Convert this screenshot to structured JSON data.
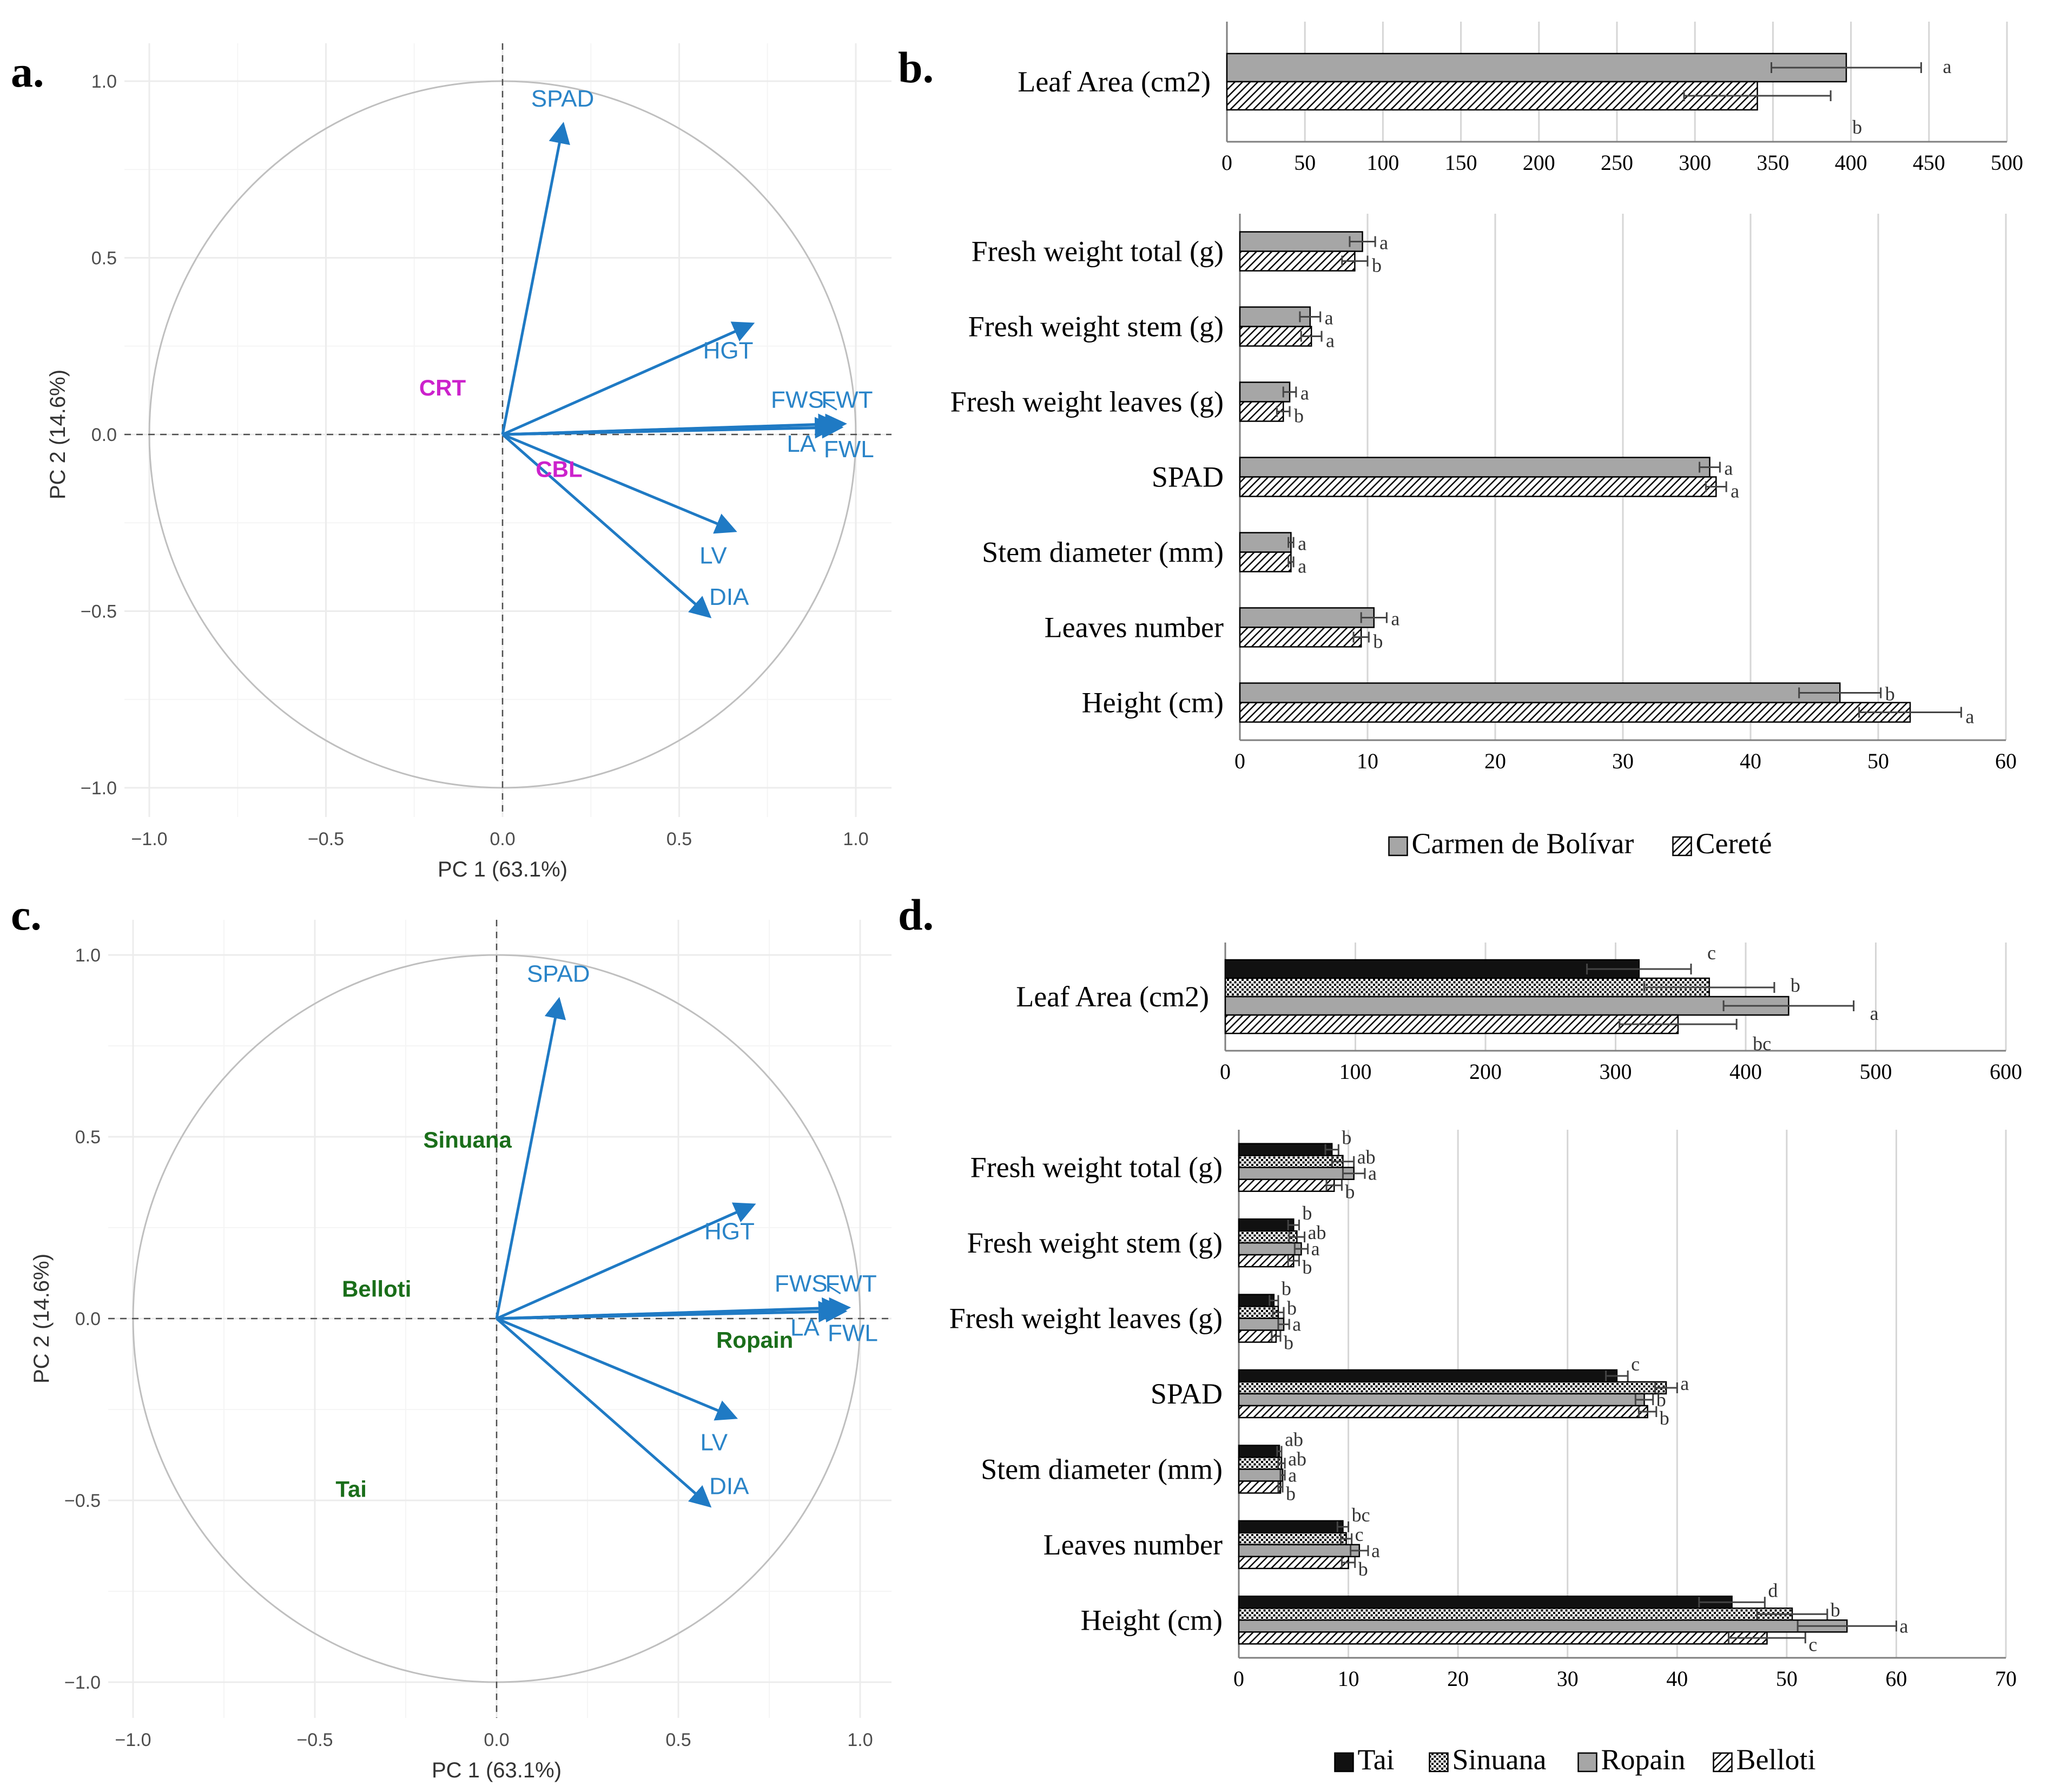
{
  "panel_labels": {
    "a": "a.",
    "b": "b.",
    "c": "c.",
    "d": "d."
  },
  "colors": {
    "arrow": "#1f7ac4",
    "var_label": "#2a84c8",
    "location_label": "#cc22cc",
    "variety_label": "#1a6e1a"
  },
  "chart_data": [
    {
      "id": "a",
      "type": "scatter",
      "subtype": "pca-biplot",
      "xlabel": "PC 1 (63.1%)",
      "ylabel": "PC 2 (14.6%)",
      "xlim": [
        -1.0,
        1.0
      ],
      "ylim": [
        -1.0,
        1.0
      ],
      "x_ticks": [
        "−1.0",
        "−0.5",
        "0.0",
        "0.5",
        "1.0"
      ],
      "y_ticks": [
        "1.0",
        "0.5",
        "0.0",
        "−0.5",
        "−1.0"
      ],
      "variables": [
        {
          "name": "SPAD",
          "x": 0.17,
          "y": 0.87
        },
        {
          "name": "HGT",
          "x": 0.7,
          "y": 0.31
        },
        {
          "name": "FWS",
          "x": 0.94,
          "y": 0.03
        },
        {
          "name": "FWT",
          "x": 0.96,
          "y": 0.03
        },
        {
          "name": "LA",
          "x": 0.93,
          "y": 0.02
        },
        {
          "name": "FWL",
          "x": 0.95,
          "y": 0.02
        },
        {
          "name": "LV",
          "x": 0.65,
          "y": -0.27
        },
        {
          "name": "DIA",
          "x": 0.58,
          "y": -0.51
        }
      ],
      "groups": [
        {
          "name": "CRT",
          "x": -0.17,
          "y": 0.11
        },
        {
          "name": "CBL",
          "x": 0.16,
          "y": -0.12
        }
      ]
    },
    {
      "id": "b-top",
      "type": "bar",
      "orientation": "horizontal",
      "categories": [
        "Leaf Area (cm2)"
      ],
      "series": [
        {
          "name": "Carmen de Bolívar",
          "values": [
            397
          ],
          "errors": [
            48
          ],
          "letters": [
            "a"
          ]
        },
        {
          "name": "Cereté",
          "values": [
            340
          ],
          "errors": [
            47
          ],
          "letters": [
            "b"
          ]
        }
      ],
      "xlim": [
        0,
        500
      ],
      "x_ticks": [
        "0",
        "50",
        "100",
        "150",
        "200",
        "250",
        "300",
        "350",
        "400",
        "450",
        "500"
      ]
    },
    {
      "id": "b-bottom",
      "type": "bar",
      "orientation": "horizontal",
      "categories": [
        "Fresh weight total (g)",
        "Fresh weight stem (g)",
        "Fresh weight leaves (g)",
        "SPAD",
        "Stem diameter (mm)",
        "Leaves number",
        "Height (cm)"
      ],
      "series": [
        {
          "name": "Carmen de Bolívar",
          "values": [
            9.6,
            5.5,
            3.9,
            36.8,
            4.0,
            10.5,
            47.0
          ],
          "errors": [
            1.0,
            0.8,
            0.5,
            0.8,
            0.2,
            1.0,
            3.2
          ],
          "letters": [
            "a",
            "a",
            "a",
            "a",
            "a",
            "a",
            "b"
          ]
        },
        {
          "name": "Cereté",
          "values": [
            9.0,
            5.6,
            3.4,
            37.3,
            4.0,
            9.5,
            52.5
          ],
          "errors": [
            1.0,
            0.8,
            0.5,
            0.8,
            0.2,
            0.6,
            4.0
          ],
          "letters": [
            "b",
            "a",
            "b",
            "a",
            "a",
            "b",
            "a"
          ]
        }
      ],
      "xlim": [
        0,
        60
      ],
      "x_ticks": [
        "0",
        "10",
        "20",
        "30",
        "40",
        "50",
        "60"
      ],
      "legend": [
        "Carmen de Bolívar",
        "Cereté"
      ]
    },
    {
      "id": "c",
      "type": "scatter",
      "subtype": "pca-biplot",
      "xlabel": "PC 1 (63.1%)",
      "ylabel": "PC 2 (14.6%)",
      "xlim": [
        -1.0,
        1.0
      ],
      "ylim": [
        -1.0,
        1.0
      ],
      "x_ticks": [
        "−1.0",
        "−0.5",
        "0.0",
        "0.5",
        "1.0"
      ],
      "y_ticks": [
        "1.0",
        "0.5",
        "0.0",
        "−0.5",
        "−1.0"
      ],
      "variables": [
        {
          "name": "SPAD",
          "x": 0.17,
          "y": 0.87
        },
        {
          "name": "HGT",
          "x": 0.7,
          "y": 0.31
        },
        {
          "name": "FWS",
          "x": 0.94,
          "y": 0.03
        },
        {
          "name": "FWT",
          "x": 0.96,
          "y": 0.03
        },
        {
          "name": "LA",
          "x": 0.93,
          "y": 0.02
        },
        {
          "name": "FWL",
          "x": 0.95,
          "y": 0.02
        },
        {
          "name": "LV",
          "x": 0.65,
          "y": -0.27
        },
        {
          "name": "DIA",
          "x": 0.58,
          "y": -0.51
        }
      ],
      "groups": [
        {
          "name": "Sinuana",
          "x": -0.08,
          "y": 0.47
        },
        {
          "name": "Belloti",
          "x": -0.33,
          "y": 0.06
        },
        {
          "name": "Ropain",
          "x": 0.71,
          "y": -0.08
        },
        {
          "name": "Tai",
          "x": -0.4,
          "y": -0.49
        }
      ]
    },
    {
      "id": "d-top",
      "type": "bar",
      "orientation": "horizontal",
      "categories": [
        "Leaf Area (cm2)"
      ],
      "series": [
        {
          "name": "Tai",
          "values": [
            318
          ],
          "errors": [
            40
          ],
          "letters": [
            "c"
          ]
        },
        {
          "name": "Sinuana",
          "values": [
            372
          ],
          "errors": [
            50
          ],
          "letters": [
            "b"
          ]
        },
        {
          "name": "Ropain",
          "values": [
            433
          ],
          "errors": [
            50
          ],
          "letters": [
            "a"
          ]
        },
        {
          "name": "Belloti",
          "values": [
            348
          ],
          "errors": [
            45
          ],
          "letters": [
            "bc"
          ]
        }
      ],
      "xlim": [
        0,
        600
      ],
      "x_ticks": [
        "0",
        "100",
        "200",
        "300",
        "400",
        "500",
        "600"
      ]
    },
    {
      "id": "d-bottom",
      "type": "bar",
      "orientation": "horizontal",
      "categories": [
        "Fresh weight total (g)",
        "Fresh weight stem (g)",
        "Fresh weight leaves (g)",
        "SPAD",
        "Stem diameter (mm)",
        "Leaves number",
        "Height (cm)"
      ],
      "series": [
        {
          "name": "Tai",
          "values": [
            8.5,
            5.0,
            3.2,
            34.5,
            3.7,
            9.5,
            45.0
          ],
          "errors": [
            0.6,
            0.5,
            0.4,
            1.0,
            0.2,
            0.5,
            3.0
          ],
          "letters": [
            "b",
            "b",
            "b",
            "c",
            "ab",
            "bc",
            "d"
          ]
        },
        {
          "name": "Sinuana",
          "values": [
            9.5,
            5.3,
            3.6,
            39.0,
            3.9,
            9.8,
            50.5
          ],
          "errors": [
            1.0,
            0.7,
            0.5,
            1.0,
            0.3,
            0.5,
            3.2
          ],
          "letters": [
            "ab",
            "ab",
            "b",
            "a",
            "ab",
            "c",
            "b"
          ]
        },
        {
          "name": "Ropain",
          "values": [
            10.5,
            5.7,
            4.1,
            37.0,
            4.0,
            11.0,
            55.5
          ],
          "errors": [
            1.0,
            0.6,
            0.5,
            0.8,
            0.2,
            0.8,
            4.5
          ],
          "letters": [
            "a",
            "a",
            "a",
            "b",
            "a",
            "a",
            "a"
          ]
        },
        {
          "name": "Belloti",
          "values": [
            8.7,
            5.0,
            3.4,
            37.3,
            3.8,
            10.0,
            48.2
          ],
          "errors": [
            0.7,
            0.5,
            0.4,
            0.8,
            0.2,
            0.6,
            3.5
          ],
          "letters": [
            "b",
            "b",
            "b",
            "b",
            "b",
            "b",
            "c"
          ]
        }
      ],
      "xlim": [
        0,
        70
      ],
      "x_ticks": [
        "0",
        "10",
        "20",
        "30",
        "40",
        "50",
        "60",
        "70"
      ],
      "legend": [
        "Tai",
        "Sinuana",
        "Ropain",
        "Belloti"
      ]
    }
  ]
}
